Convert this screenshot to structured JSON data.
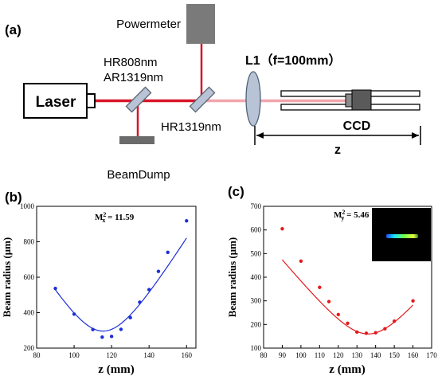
{
  "panel_a": {
    "label": "(a)",
    "laser": "Laser",
    "powermeter": "Powermeter",
    "mirror1_line1": "HR808nm",
    "mirror1_line2": "AR1319nm",
    "mirror2": "HR1319nm",
    "beamdump": "BeamDump",
    "lens": "L1（f=100mm）",
    "ccd": "CCD",
    "z": "z"
  },
  "colors": {
    "beam_red": "#d8142a",
    "beam_pink": "#f2a6ac",
    "blue_series": "#1c2fd8",
    "red_series": "#e31a1c"
  },
  "chart_data": [
    {
      "type": "scatter",
      "panel_label": "(b)",
      "annotation": "M",
      "annotation_sup": "2",
      "annotation_sub": "x",
      "annotation_value": " = 11.59",
      "xlabel": "z  (mm)",
      "ylabel": "Beam radius (μm)",
      "xlim": [
        80,
        165
      ],
      "ylim": [
        200,
        1000
      ],
      "xticks": [
        80,
        100,
        120,
        140,
        160
      ],
      "yticks": [
        200,
        400,
        600,
        800,
        1000
      ],
      "points": [
        {
          "x": 90,
          "y": 537
        },
        {
          "x": 100,
          "y": 392
        },
        {
          "x": 110,
          "y": 305
        },
        {
          "x": 115,
          "y": 262
        },
        {
          "x": 120,
          "y": 266
        },
        {
          "x": 125,
          "y": 306
        },
        {
          "x": 130,
          "y": 372
        },
        {
          "x": 135,
          "y": 459
        },
        {
          "x": 140,
          "y": 530
        },
        {
          "x": 145,
          "y": 633
        },
        {
          "x": 150,
          "y": 740
        },
        {
          "x": 160,
          "y": 918
        }
      ],
      "fit": {
        "x0": 115.5,
        "w0": 296,
        "zr": 17.2,
        "x_from": 90,
        "x_to": 160
      },
      "color": "#1c2fd8"
    },
    {
      "type": "scatter",
      "panel_label": "(c)",
      "annotation": "M",
      "annotation_sup": "2",
      "annotation_sub": "y",
      "annotation_value": " = 5.46",
      "xlabel": "z  (mm)",
      "ylabel": "Beam radius (μm)",
      "xlim": [
        80,
        170
      ],
      "ylim": [
        100,
        700
      ],
      "xticks": [
        80,
        90,
        100,
        110,
        120,
        130,
        140,
        150,
        160,
        170
      ],
      "yticks": [
        100,
        200,
        300,
        400,
        500,
        600,
        700
      ],
      "points": [
        {
          "x": 90,
          "y": 605
        },
        {
          "x": 100,
          "y": 468
        },
        {
          "x": 110,
          "y": 357
        },
        {
          "x": 115,
          "y": 297
        },
        {
          "x": 120,
          "y": 242
        },
        {
          "x": 125,
          "y": 205
        },
        {
          "x": 130,
          "y": 168
        },
        {
          "x": 135,
          "y": 163
        },
        {
          "x": 140,
          "y": 165
        },
        {
          "x": 145,
          "y": 182
        },
        {
          "x": 150,
          "y": 214
        },
        {
          "x": 160,
          "y": 300
        }
      ],
      "fit": {
        "x0": 136,
        "w0": 160,
        "zr": 16.5,
        "x_from": 90,
        "x_to": 160
      },
      "color": "#e31a1c"
    }
  ]
}
